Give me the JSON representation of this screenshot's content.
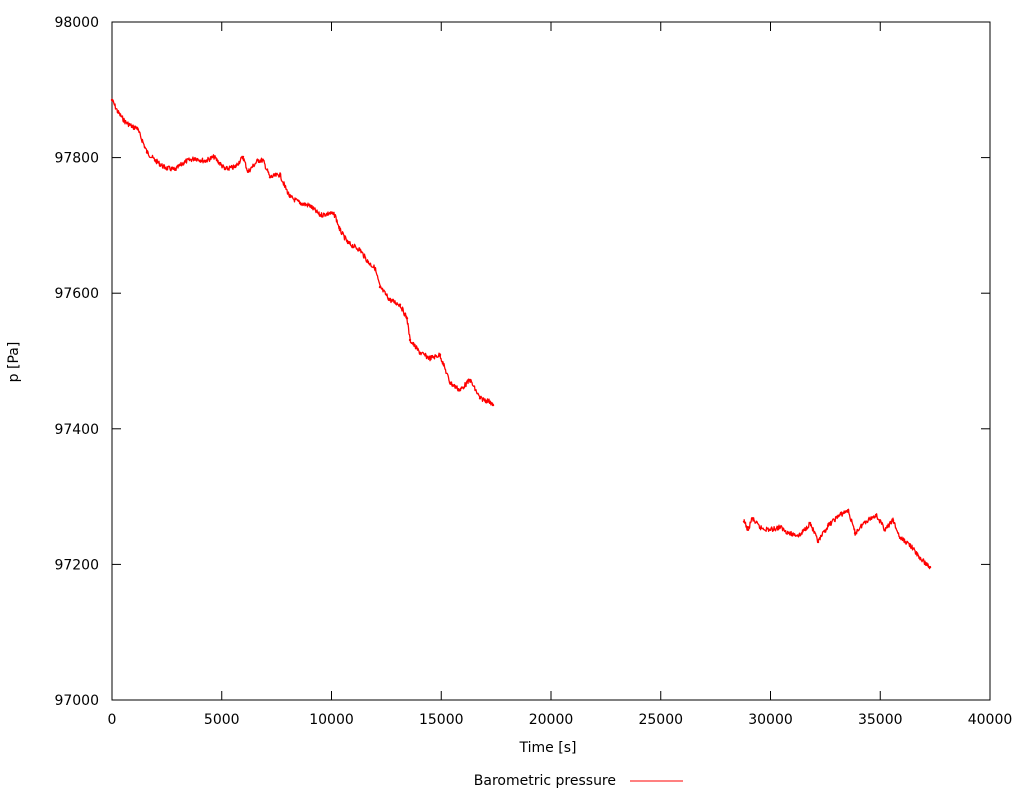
{
  "chart_data": {
    "type": "line",
    "title": "",
    "xlabel": "Time [s]",
    "ylabel": "p [Pa]",
    "xlim": [
      0,
      40000
    ],
    "ylim": [
      97000,
      98000
    ],
    "xticks": [
      0,
      5000,
      10000,
      15000,
      20000,
      25000,
      30000,
      35000,
      40000
    ],
    "yticks": [
      97000,
      97200,
      97400,
      97600,
      97800,
      98000
    ],
    "grid": false,
    "legend_position": "bottom-center",
    "series": [
      {
        "name": "Barometric pressure",
        "color": "#ff0000",
        "segments": [
          [
            [
              0,
              97885
            ],
            [
              273,
              97867
            ],
            [
              592,
              97853
            ],
            [
              957,
              97845
            ],
            [
              1139,
              97844
            ],
            [
              1367,
              97826
            ],
            [
              1594,
              97808
            ],
            [
              1959,
              97796
            ],
            [
              2415,
              97785
            ],
            [
              2870,
              97782
            ],
            [
              3326,
              97794
            ],
            [
              3781,
              97799
            ],
            [
              4237,
              97795
            ],
            [
              4647,
              97801
            ],
            [
              5148,
              97783
            ],
            [
              5604,
              97786
            ],
            [
              5968,
              97801
            ],
            [
              6196,
              97779
            ],
            [
              6652,
              97796
            ],
            [
              6880,
              97796
            ],
            [
              7198,
              97771
            ],
            [
              7654,
              97775
            ],
            [
              7882,
              97757
            ],
            [
              8110,
              97742
            ],
            [
              8565,
              97733
            ],
            [
              9021,
              97729
            ],
            [
              9476,
              97715
            ],
            [
              9932,
              97718
            ],
            [
              10160,
              97715
            ],
            [
              10388,
              97693
            ],
            [
              10752,
              97674
            ],
            [
              11299,
              97664
            ],
            [
              11663,
              97646
            ],
            [
              11982,
              97637
            ],
            [
              12210,
              97609
            ],
            [
              12666,
              97590
            ],
            [
              13121,
              97583
            ],
            [
              13440,
              97563
            ],
            [
              13577,
              97531
            ],
            [
              14032,
              97512
            ],
            [
              14488,
              97504
            ],
            [
              14944,
              97509
            ],
            [
              15399,
              97468
            ],
            [
              15855,
              97457
            ],
            [
              16311,
              97472
            ],
            [
              16766,
              97445
            ],
            [
              17222,
              97440
            ],
            [
              17358,
              97435
            ]
          ],
          [
            [
              28795,
              97263
            ],
            [
              28977,
              97251
            ],
            [
              29160,
              97268
            ],
            [
              29524,
              97254
            ],
            [
              29980,
              97251
            ],
            [
              30435,
              97255
            ],
            [
              30891,
              97245
            ],
            [
              31346,
              97243
            ],
            [
              31802,
              97261
            ],
            [
              32167,
              97233
            ],
            [
              32622,
              97257
            ],
            [
              33078,
              97271
            ],
            [
              33533,
              97280
            ],
            [
              33852,
              97246
            ],
            [
              34308,
              97263
            ],
            [
              34809,
              97273
            ],
            [
              35219,
              97251
            ],
            [
              35583,
              97265
            ],
            [
              35902,
              97239
            ],
            [
              36357,
              97229
            ],
            [
              36813,
              97209
            ],
            [
              37268,
              97196
            ]
          ]
        ]
      }
    ]
  }
}
